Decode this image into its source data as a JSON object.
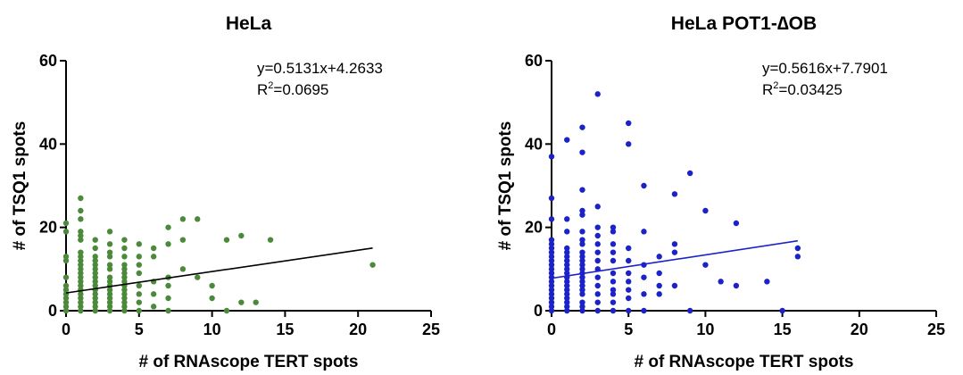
{
  "chart_data": [
    {
      "type": "scatter",
      "title": "HeLa",
      "xlabel": "# of RNAscope TERT spots",
      "ylabel": "# of TSQ1 spots",
      "xlim": [
        0,
        25
      ],
      "ylim": [
        0,
        60
      ],
      "xticks": [
        0,
        5,
        10,
        15,
        20,
        25
      ],
      "yticks": [
        0,
        20,
        40,
        60
      ],
      "xtick_labels": [
        "0",
        "5",
        "10",
        "15",
        "20",
        "25"
      ],
      "ytick_labels": [
        "0",
        "20",
        "40",
        "60"
      ],
      "grid": false,
      "point_color": "#4a8a3a",
      "line_color": "#000000",
      "equation": "y=0.5131x+4.2633",
      "r2_label": "R",
      "r2_sup": "2",
      "r2_value": "=0.0695",
      "fit": {
        "slope": 0.5131,
        "intercept": 4.2633
      },
      "points": [
        [
          0,
          0
        ],
        [
          0,
          1
        ],
        [
          0,
          2
        ],
        [
          0,
          3
        ],
        [
          0,
          4
        ],
        [
          0,
          5
        ],
        [
          0,
          6
        ],
        [
          0,
          8
        ],
        [
          0,
          12
        ],
        [
          0,
          13
        ],
        [
          0,
          19
        ],
        [
          0,
          21
        ],
        [
          1,
          0
        ],
        [
          1,
          1
        ],
        [
          1,
          2
        ],
        [
          1,
          3
        ],
        [
          1,
          4
        ],
        [
          1,
          5
        ],
        [
          1,
          6
        ],
        [
          1,
          7
        ],
        [
          1,
          8
        ],
        [
          1,
          9
        ],
        [
          1,
          10
        ],
        [
          1,
          11
        ],
        [
          1,
          12
        ],
        [
          1,
          13
        ],
        [
          1,
          14
        ],
        [
          1,
          17
        ],
        [
          1,
          18
        ],
        [
          1,
          19
        ],
        [
          1,
          22
        ],
        [
          1,
          24
        ],
        [
          1,
          27
        ],
        [
          2,
          0
        ],
        [
          2,
          1
        ],
        [
          2,
          2
        ],
        [
          2,
          3
        ],
        [
          2,
          4
        ],
        [
          2,
          5
        ],
        [
          2,
          6
        ],
        [
          2,
          7
        ],
        [
          2,
          8
        ],
        [
          2,
          9
        ],
        [
          2,
          10
        ],
        [
          2,
          11
        ],
        [
          2,
          12
        ],
        [
          2,
          13
        ],
        [
          2,
          15
        ],
        [
          2,
          17
        ],
        [
          3,
          0
        ],
        [
          3,
          1
        ],
        [
          3,
          2
        ],
        [
          3,
          3
        ],
        [
          3,
          4
        ],
        [
          3,
          5
        ],
        [
          3,
          6
        ],
        [
          3,
          7
        ],
        [
          3,
          8
        ],
        [
          3,
          10
        ],
        [
          3,
          11
        ],
        [
          3,
          13
        ],
        [
          3,
          14
        ],
        [
          3,
          16
        ],
        [
          3,
          19
        ],
        [
          4,
          0
        ],
        [
          4,
          1
        ],
        [
          4,
          2
        ],
        [
          4,
          3
        ],
        [
          4,
          4
        ],
        [
          4,
          5
        ],
        [
          4,
          6
        ],
        [
          4,
          7
        ],
        [
          4,
          8
        ],
        [
          4,
          9
        ],
        [
          4,
          10
        ],
        [
          4,
          11
        ],
        [
          4,
          13
        ],
        [
          4,
          15
        ],
        [
          4,
          17
        ],
        [
          5,
          0
        ],
        [
          5,
          2
        ],
        [
          5,
          4
        ],
        [
          5,
          6
        ],
        [
          5,
          9
        ],
        [
          5,
          11
        ],
        [
          5,
          13
        ],
        [
          5,
          16
        ],
        [
          6,
          1
        ],
        [
          6,
          4
        ],
        [
          6,
          7
        ],
        [
          6,
          13
        ],
        [
          6,
          15
        ],
        [
          7,
          0
        ],
        [
          7,
          3
        ],
        [
          7,
          6
        ],
        [
          7,
          8
        ],
        [
          7,
          16
        ],
        [
          7,
          20
        ],
        [
          8,
          10
        ],
        [
          8,
          17
        ],
        [
          8,
          22
        ],
        [
          9,
          8
        ],
        [
          9,
          22
        ],
        [
          10,
          3
        ],
        [
          10,
          6
        ],
        [
          11,
          0
        ],
        [
          11,
          17
        ],
        [
          12,
          2
        ],
        [
          12,
          18
        ],
        [
          13,
          2
        ],
        [
          14,
          17
        ],
        [
          21,
          11
        ]
      ]
    },
    {
      "type": "scatter",
      "title": "HeLa POT1-∆OB",
      "xlabel": "# of RNAscope TERT spots",
      "ylabel": "# of TSQ1 spots",
      "xlim": [
        0,
        25
      ],
      "ylim": [
        0,
        60
      ],
      "xticks": [
        0,
        5,
        10,
        15,
        20,
        25
      ],
      "yticks": [
        0,
        20,
        40,
        60
      ],
      "xtick_labels": [
        "0",
        "5",
        "10",
        "15",
        "20",
        "25"
      ],
      "ytick_labels": [
        "0",
        "20",
        "40",
        "60"
      ],
      "grid": false,
      "point_color": "#1a22c8",
      "line_color": "#1a22c8",
      "equation": "y=0.5616x+7.7901",
      "r2_label": "R",
      "r2_sup": "2",
      "r2_value": "=0.03425",
      "fit": {
        "slope": 0.5616,
        "intercept": 7.7901
      },
      "points": [
        [
          0,
          0
        ],
        [
          0,
          1
        ],
        [
          0,
          2
        ],
        [
          0,
          3
        ],
        [
          0,
          4
        ],
        [
          0,
          5
        ],
        [
          0,
          6
        ],
        [
          0,
          7
        ],
        [
          0,
          8
        ],
        [
          0,
          9
        ],
        [
          0,
          10
        ],
        [
          0,
          11
        ],
        [
          0,
          12
        ],
        [
          0,
          13
        ],
        [
          0,
          14
        ],
        [
          0,
          15
        ],
        [
          0,
          16
        ],
        [
          0,
          17
        ],
        [
          0,
          22
        ],
        [
          0,
          27
        ],
        [
          0,
          37
        ],
        [
          1,
          0
        ],
        [
          1,
          1
        ],
        [
          1,
          2
        ],
        [
          1,
          3
        ],
        [
          1,
          4
        ],
        [
          1,
          5
        ],
        [
          1,
          6
        ],
        [
          1,
          7
        ],
        [
          1,
          8
        ],
        [
          1,
          9
        ],
        [
          1,
          10
        ],
        [
          1,
          11
        ],
        [
          1,
          12
        ],
        [
          1,
          13
        ],
        [
          1,
          14
        ],
        [
          1,
          15
        ],
        [
          1,
          19
        ],
        [
          1,
          22
        ],
        [
          1,
          41
        ],
        [
          2,
          0
        ],
        [
          2,
          1
        ],
        [
          2,
          2
        ],
        [
          2,
          4
        ],
        [
          2,
          5
        ],
        [
          2,
          6
        ],
        [
          2,
          7
        ],
        [
          2,
          8
        ],
        [
          2,
          9
        ],
        [
          2,
          10
        ],
        [
          2,
          11
        ],
        [
          2,
          12
        ],
        [
          2,
          13
        ],
        [
          2,
          14
        ],
        [
          2,
          16
        ],
        [
          2,
          17
        ],
        [
          2,
          19
        ],
        [
          2,
          23
        ],
        [
          2,
          24
        ],
        [
          2,
          29
        ],
        [
          2,
          38
        ],
        [
          2,
          44
        ],
        [
          3,
          0
        ],
        [
          3,
          2
        ],
        [
          3,
          4
        ],
        [
          3,
          6
        ],
        [
          3,
          8
        ],
        [
          3,
          10
        ],
        [
          3,
          12
        ],
        [
          3,
          14
        ],
        [
          3,
          16
        ],
        [
          3,
          18
        ],
        [
          3,
          20
        ],
        [
          3,
          25
        ],
        [
          3,
          52
        ],
        [
          4,
          0
        ],
        [
          4,
          2
        ],
        [
          4,
          4
        ],
        [
          4,
          5
        ],
        [
          4,
          7
        ],
        [
          4,
          9
        ],
        [
          4,
          12
        ],
        [
          4,
          14
        ],
        [
          4,
          16
        ],
        [
          4,
          19
        ],
        [
          4,
          20
        ],
        [
          5,
          0
        ],
        [
          5,
          3
        ],
        [
          5,
          5
        ],
        [
          5,
          7
        ],
        [
          5,
          9
        ],
        [
          5,
          12
        ],
        [
          5,
          15
        ],
        [
          5,
          40
        ],
        [
          5,
          45
        ],
        [
          6,
          0
        ],
        [
          6,
          4
        ],
        [
          6,
          8
        ],
        [
          6,
          11
        ],
        [
          6,
          19
        ],
        [
          6,
          30
        ],
        [
          7,
          4
        ],
        [
          7,
          6
        ],
        [
          7,
          9
        ],
        [
          7,
          13
        ],
        [
          8,
          6
        ],
        [
          8,
          14
        ],
        [
          8,
          16
        ],
        [
          8,
          28
        ],
        [
          9,
          0
        ],
        [
          9,
          33
        ],
        [
          10,
          11
        ],
        [
          10,
          24
        ],
        [
          11,
          7
        ],
        [
          12,
          6
        ],
        [
          12,
          21
        ],
        [
          14,
          7
        ],
        [
          15,
          0
        ],
        [
          16,
          13
        ],
        [
          16,
          15
        ]
      ]
    }
  ]
}
